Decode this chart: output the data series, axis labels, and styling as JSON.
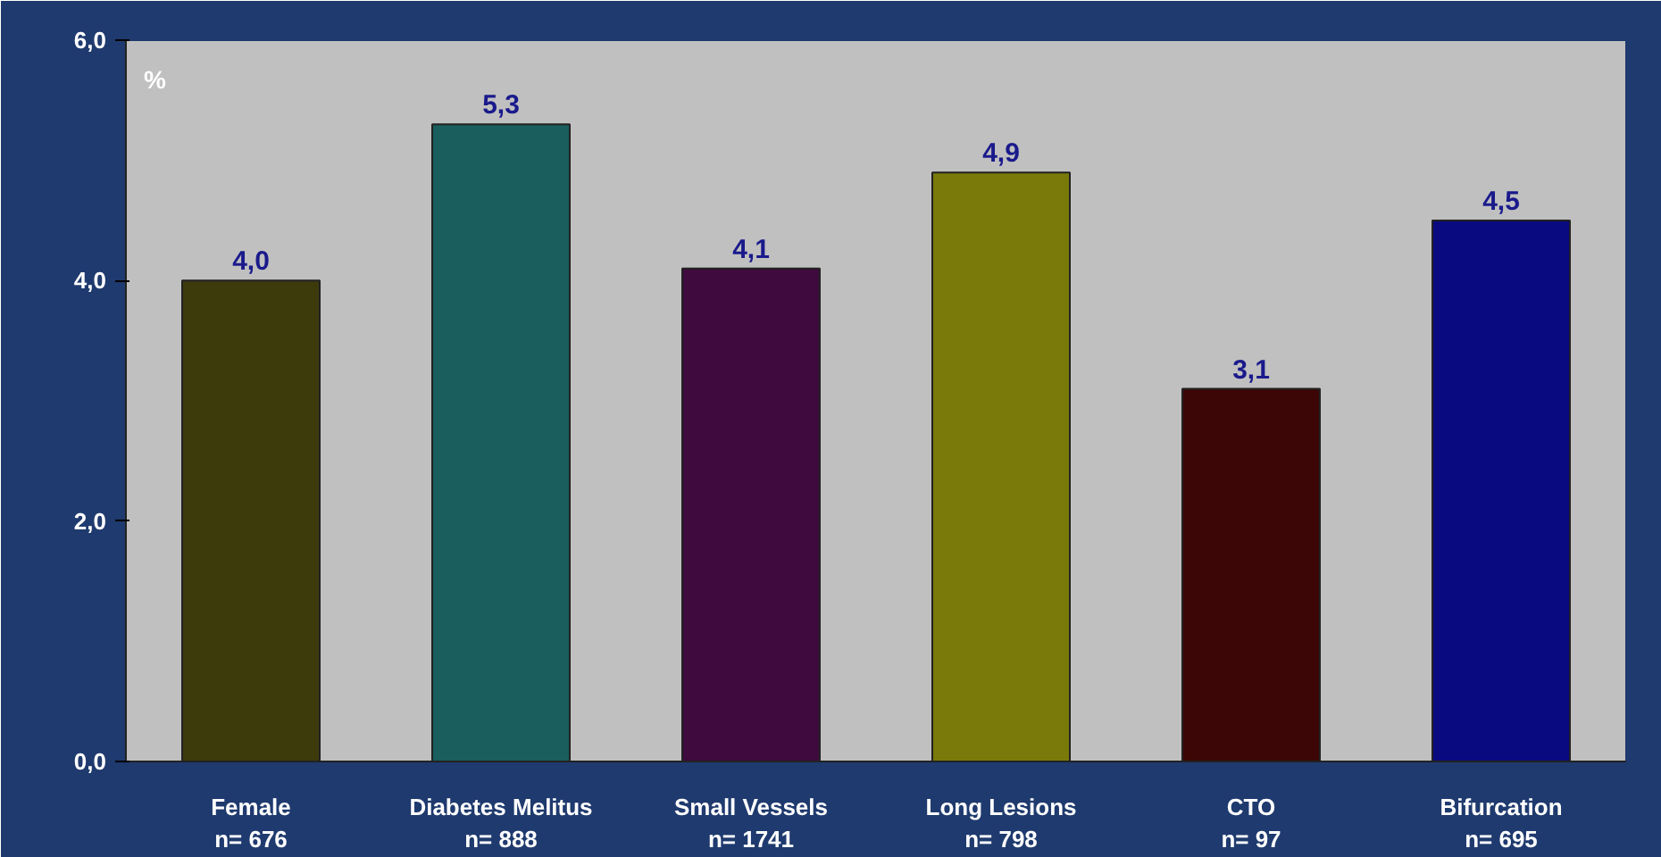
{
  "chart_data": {
    "type": "bar",
    "ylabel": "%",
    "categories": [
      "Female\nn= 676",
      "Diabetes Melitus\nn= 888",
      "Small Vessels\nn= 1741",
      "Long Lesions\nn= 798",
      "CTO\nn= 97",
      "Bifurcation\nn= 695"
    ],
    "values": [
      4.0,
      5.3,
      4.1,
      4.9,
      3.1,
      4.5
    ],
    "colors": [
      "#3d3a0c",
      "#1a5e5e",
      "#3f0a3d",
      "#7a7a0a",
      "#3d0606",
      "#0a0a80"
    ],
    "value_labels": [
      "4,0",
      "5,3",
      "4,1",
      "4,9",
      "3,1",
      "4,5"
    ],
    "ylim": [
      0,
      6
    ],
    "yticks": [
      {
        "value": 0,
        "label": "0,0"
      },
      {
        "value": 2,
        "label": "2,0"
      },
      {
        "value": 4,
        "label": "4,0"
      },
      {
        "value": 6,
        "label": "6,0"
      }
    ],
    "grid": false
  }
}
